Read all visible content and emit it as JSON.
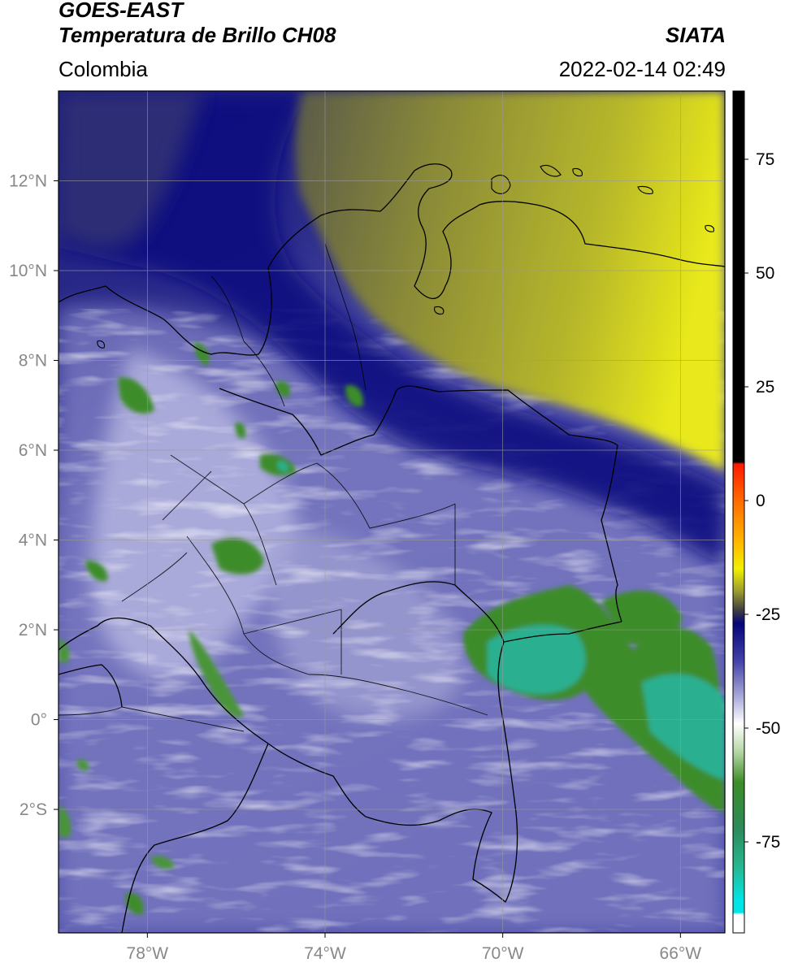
{
  "header": {
    "satellite": "GOES-EAST",
    "product": "Temperatura de Brillo CH08",
    "organization": "SIATA",
    "region": "Colombia",
    "timestamp": "2022-02-14 02:49"
  },
  "map": {
    "lon_range": [
      -80,
      -65
    ],
    "lat_range": [
      -4.75,
      14.0
    ],
    "lon_ticks": [
      {
        "value": -78,
        "label": "78°W"
      },
      {
        "value": -74,
        "label": "74°W"
      },
      {
        "value": -70,
        "label": "70°W"
      },
      {
        "value": -66,
        "label": "66°W"
      }
    ],
    "lat_ticks": [
      {
        "value": 12,
        "label": "12°N"
      },
      {
        "value": 10,
        "label": "10°N"
      },
      {
        "value": 8,
        "label": "8°N"
      },
      {
        "value": 6,
        "label": "6°N"
      },
      {
        "value": 4,
        "label": "4°N"
      },
      {
        "value": 2,
        "label": "2°N"
      },
      {
        "value": 0,
        "label": "0°"
      },
      {
        "value": -2,
        "label": "2°S"
      }
    ],
    "colors": {
      "dry_high": "#e8e81a",
      "mid_olive": "#8c8c2e",
      "grey_dark": "#5a5a5a",
      "navy": "#0d0d80",
      "blue": "#3c3ca0",
      "lavender": "#9c9cd0",
      "white": "#ffffff",
      "green": "#3c8c28",
      "teal": "#28b48c",
      "border": "#000000"
    }
  },
  "colorbar": {
    "min": -95,
    "max": 90,
    "ticks": [
      {
        "value": 75,
        "label": "75"
      },
      {
        "value": 50,
        "label": "50"
      },
      {
        "value": 25,
        "label": "25"
      },
      {
        "value": 0,
        "label": "0"
      },
      {
        "value": -25,
        "label": "-25"
      },
      {
        "value": -50,
        "label": "-50"
      },
      {
        "value": -75,
        "label": "-75"
      }
    ],
    "stops": [
      {
        "value": 90,
        "color": "#000000"
      },
      {
        "value": 8.5,
        "color": "#000000"
      },
      {
        "value": 8,
        "color": "#ff1a00"
      },
      {
        "value": 0,
        "color": "#ff6a00"
      },
      {
        "value": -10,
        "color": "#ffc000"
      },
      {
        "value": -15,
        "color": "#f0f000"
      },
      {
        "value": -20,
        "color": "#9a9a30"
      },
      {
        "value": -24,
        "color": "#404040"
      },
      {
        "value": -27,
        "color": "#05057a"
      },
      {
        "value": -35,
        "color": "#4040a8"
      },
      {
        "value": -43,
        "color": "#a8a8d8"
      },
      {
        "value": -49,
        "color": "#ffffff"
      },
      {
        "value": -55,
        "color": "#b8d8a8"
      },
      {
        "value": -62,
        "color": "#3c8c28"
      },
      {
        "value": -72,
        "color": "#2d8a5a"
      },
      {
        "value": -80,
        "color": "#28b48c"
      },
      {
        "value": -88,
        "color": "#00e6e6"
      },
      {
        "value": -90.5,
        "color": "#00e6e6"
      },
      {
        "value": -91,
        "color": "#ffffff"
      },
      {
        "value": -95,
        "color": "#ffffff"
      }
    ]
  }
}
